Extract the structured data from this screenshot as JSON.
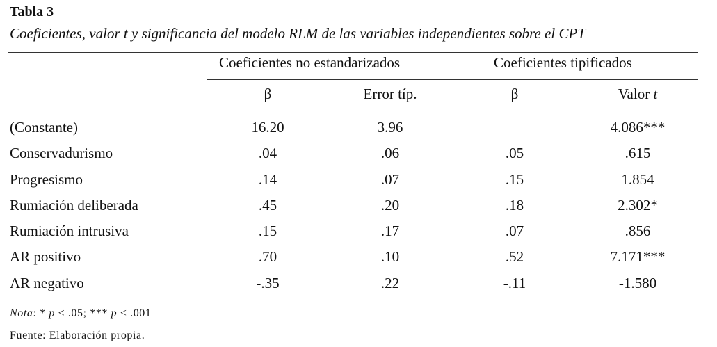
{
  "table": {
    "title": "Tabla 3",
    "subtitle": "Coeficientes, valor t y significancia del modelo RLM de las variables independientes sobre el CPT",
    "group_headers": [
      "Coeficientes no estandarizados",
      "Coeficientes tipificados"
    ],
    "column_headers": [
      "β",
      "Error típ.",
      "β",
      "Valor t"
    ],
    "rows": [
      {
        "label": "(Constante)",
        "values": [
          "16.20",
          "3.96",
          "",
          "4.086***"
        ]
      },
      {
        "label": "Conservadurismo",
        "values": [
          ".04",
          ".06",
          ".05",
          ".615"
        ]
      },
      {
        "label": "Progresismo",
        "values": [
          ".14",
          ".07",
          ".15",
          "1.854"
        ]
      },
      {
        "label": "Rumiación deliberada",
        "values": [
          ".45",
          ".20",
          ".18",
          "2.302*"
        ]
      },
      {
        "label": "Rumiación intrusiva",
        "values": [
          ".15",
          ".17",
          ".07",
          ".856"
        ]
      },
      {
        "label": "AR positivo",
        "values": [
          ".70",
          ".10",
          ".52",
          "7.171***"
        ]
      },
      {
        "label": "AR negativo",
        "values": [
          "-.35",
          ".22",
          "-.11",
          "-1.580"
        ]
      }
    ]
  },
  "notes": {
    "nota_label": "Nota",
    "nota_text_1": ": * ",
    "p1": "p",
    "nota_text_2": " < .05; *** ",
    "p2": "p",
    "nota_text_3": " < .001",
    "fuente": "Fuente: Elaboración propia."
  }
}
